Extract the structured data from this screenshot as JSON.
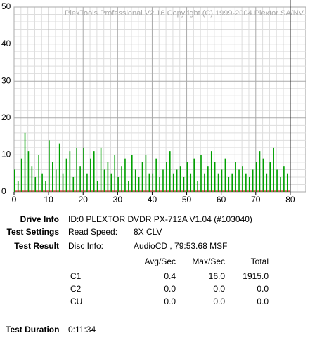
{
  "chart_data": {
    "type": "bar",
    "title": "PlexTools Professional V2.16 Copyright (C) 1999-2004 Plextor SA/NV",
    "x": [
      0,
      1,
      2,
      3,
      4,
      5,
      6,
      7,
      8,
      9,
      10,
      11,
      12,
      13,
      14,
      15,
      16,
      17,
      18,
      19,
      20,
      21,
      22,
      23,
      24,
      25,
      26,
      27,
      28,
      29,
      30,
      31,
      32,
      33,
      34,
      35,
      36,
      37,
      38,
      39,
      40,
      41,
      42,
      43,
      44,
      45,
      46,
      47,
      48,
      49,
      50,
      51,
      52,
      53,
      54,
      55,
      56,
      57,
      58,
      59,
      60,
      61,
      62,
      63,
      64,
      65,
      66,
      67,
      68,
      69,
      70,
      71,
      72,
      73,
      74,
      75,
      76,
      77,
      78,
      79
    ],
    "values": [
      6,
      3,
      9,
      16,
      11,
      7,
      4,
      10,
      5,
      3,
      14,
      8,
      6,
      13,
      5,
      9,
      11,
      4,
      12,
      7,
      12,
      5,
      9,
      11,
      3,
      12,
      6,
      8,
      5,
      10,
      4,
      7,
      9,
      3,
      10,
      6,
      4,
      8,
      10,
      5,
      5,
      9,
      4,
      6,
      8,
      11,
      5,
      6,
      7,
      4,
      8,
      5,
      9,
      3,
      10,
      5,
      7,
      11,
      8,
      5,
      6,
      9,
      4,
      5,
      8,
      6,
      7,
      5,
      4,
      6,
      8,
      11,
      9,
      5,
      8,
      12,
      6,
      4,
      7,
      5
    ],
    "color": "#00a000",
    "xlim": [
      0,
      84.5
    ],
    "xticks": [
      0,
      10,
      20,
      30,
      40,
      50,
      60,
      70,
      80
    ],
    "ylim": [
      0,
      50
    ],
    "yticks": [
      0,
      10,
      20,
      30,
      40,
      50
    ],
    "grid": true
  },
  "info": {
    "drive_label": "Drive Info",
    "drive_value": "ID:0 PLEXTOR DVDR PX-712A V1.04 (#103040)",
    "settings_label": "Test Settings",
    "speed_label": "Read Speed:",
    "speed_value": "8X CLV",
    "result_label": "Test Result",
    "disc_label": "Disc Info:",
    "disc_value": "AudioCD , 79:53.68 MSF",
    "table": {
      "header": [
        "Avg/Sec",
        "Max/Sec",
        "Total"
      ],
      "rows": [
        [
          "C1",
          "0.4",
          "16.0",
          "1915.0"
        ],
        [
          "C2",
          "0.0",
          "0.0",
          "0.0"
        ],
        [
          "CU",
          "0.0",
          "0.0",
          "0.0"
        ]
      ]
    },
    "duration_label": "Test Duration",
    "duration_value": "0:11:34"
  }
}
